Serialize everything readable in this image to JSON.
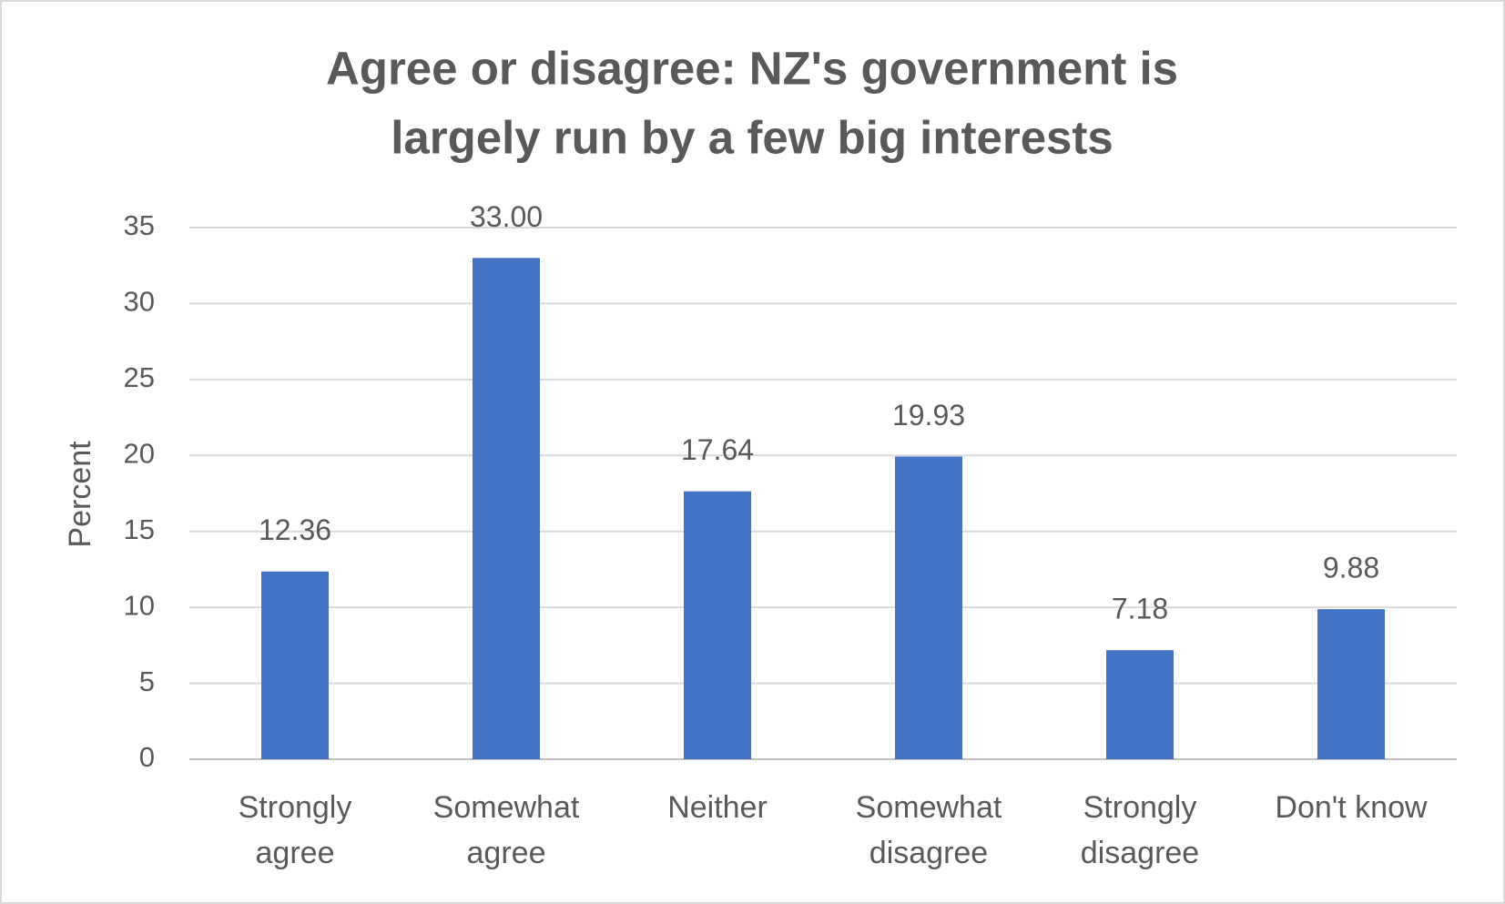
{
  "chart_data": {
    "type": "bar",
    "title": [
      "Agree or disagree: NZ's government is",
      "largely run by a few big interests"
    ],
    "y_label": "Percent",
    "categories": [
      "Strongly agree",
      "Somewhat agree",
      "Neither",
      "Somewhat disagree",
      "Strongly disagree",
      "Don't know"
    ],
    "values": [
      12.36,
      33.0,
      17.64,
      19.93,
      7.18,
      9.88
    ],
    "value_labels": [
      "12.36",
      "33.00",
      "17.64",
      "19.93",
      "7.18",
      "9.88"
    ],
    "color": "#4472c4",
    "ylim": [
      0,
      35
    ],
    "yticks": [
      0,
      5,
      10,
      15,
      20,
      25,
      30,
      35
    ],
    "grid": true
  }
}
